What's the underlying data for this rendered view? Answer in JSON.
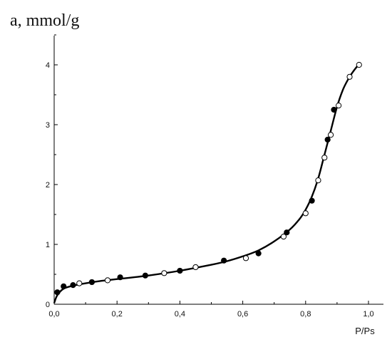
{
  "chart_data": {
    "type": "scatter",
    "title": "",
    "xlabel": "P/Ps",
    "ylabel": "a, mmol/g",
    "xlim": [
      0.0,
      1.0
    ],
    "ylim": [
      0,
      4.4
    ],
    "x_ticks": [
      "0,0",
      "0,2",
      "0,4",
      "0,6",
      "0,8",
      "1,0"
    ],
    "y_ticks": [
      "0",
      "1",
      "2",
      "3",
      "4"
    ],
    "grid": false,
    "legend": "none",
    "series": [
      {
        "marker": "filled",
        "color": "#000000",
        "points": [
          {
            "x": 0.01,
            "y": 0.2
          },
          {
            "x": 0.03,
            "y": 0.3
          },
          {
            "x": 0.06,
            "y": 0.32
          },
          {
            "x": 0.12,
            "y": 0.37
          },
          {
            "x": 0.21,
            "y": 0.45
          },
          {
            "x": 0.29,
            "y": 0.48
          },
          {
            "x": 0.4,
            "y": 0.56
          },
          {
            "x": 0.54,
            "y": 0.73
          },
          {
            "x": 0.65,
            "y": 0.85
          },
          {
            "x": 0.74,
            "y": 1.2
          },
          {
            "x": 0.82,
            "y": 1.73
          },
          {
            "x": 0.87,
            "y": 2.75
          },
          {
            "x": 0.89,
            "y": 3.25
          }
        ]
      },
      {
        "marker": "open",
        "color": "#000000",
        "points": [
          {
            "x": 0.08,
            "y": 0.35
          },
          {
            "x": 0.17,
            "y": 0.4
          },
          {
            "x": 0.35,
            "y": 0.52
          },
          {
            "x": 0.45,
            "y": 0.62
          },
          {
            "x": 0.61,
            "y": 0.77
          },
          {
            "x": 0.73,
            "y": 1.13
          },
          {
            "x": 0.8,
            "y": 1.52
          },
          {
            "x": 0.84,
            "y": 2.07
          },
          {
            "x": 0.86,
            "y": 2.45
          },
          {
            "x": 0.88,
            "y": 2.83
          },
          {
            "x": 0.905,
            "y": 3.32
          },
          {
            "x": 0.94,
            "y": 3.8
          },
          {
            "x": 0.97,
            "y": 4.0
          }
        ]
      }
    ],
    "fit_curve": [
      {
        "x": 0.0,
        "y": 0.02
      },
      {
        "x": 0.01,
        "y": 0.15
      },
      {
        "x": 0.03,
        "y": 0.26
      },
      {
        "x": 0.06,
        "y": 0.31
      },
      {
        "x": 0.1,
        "y": 0.35
      },
      {
        "x": 0.15,
        "y": 0.39
      },
      {
        "x": 0.2,
        "y": 0.42
      },
      {
        "x": 0.3,
        "y": 0.48
      },
      {
        "x": 0.4,
        "y": 0.56
      },
      {
        "x": 0.5,
        "y": 0.66
      },
      {
        "x": 0.55,
        "y": 0.72
      },
      {
        "x": 0.6,
        "y": 0.8
      },
      {
        "x": 0.65,
        "y": 0.9
      },
      {
        "x": 0.7,
        "y": 1.05
      },
      {
        "x": 0.75,
        "y": 1.25
      },
      {
        "x": 0.78,
        "y": 1.42
      },
      {
        "x": 0.8,
        "y": 1.58
      },
      {
        "x": 0.82,
        "y": 1.8
      },
      {
        "x": 0.84,
        "y": 2.1
      },
      {
        "x": 0.86,
        "y": 2.5
      },
      {
        "x": 0.88,
        "y": 2.9
      },
      {
        "x": 0.9,
        "y": 3.3
      },
      {
        "x": 0.92,
        "y": 3.6
      },
      {
        "x": 0.94,
        "y": 3.8
      },
      {
        "x": 0.96,
        "y": 3.95
      },
      {
        "x": 0.97,
        "y": 4.0
      }
    ]
  }
}
